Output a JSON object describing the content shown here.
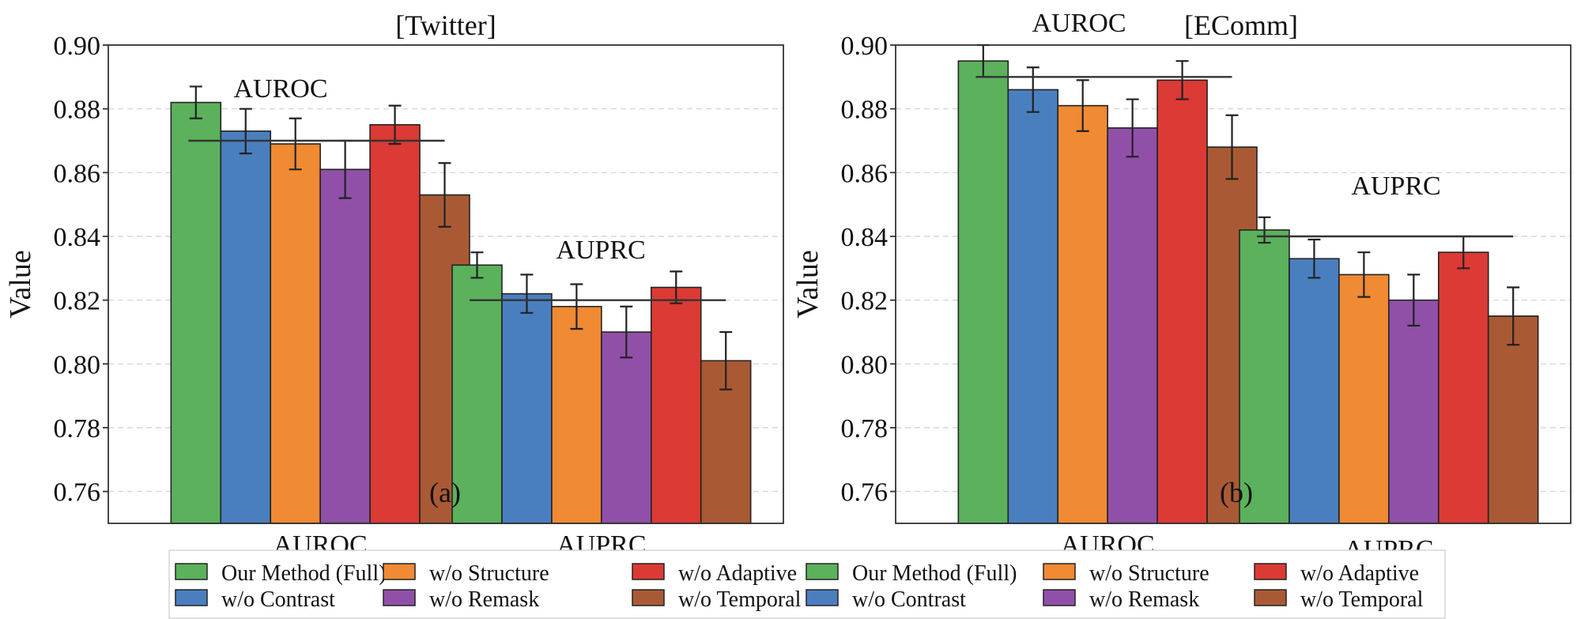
{
  "legend": {
    "entries": [
      {
        "label": "Our Method (Full)",
        "color": "#5cb15c"
      },
      {
        "label": "w/o Structure",
        "color": "#f08a33"
      },
      {
        "label": "w/o Adaptive",
        "color": "#dc3a34"
      },
      {
        "label": "Our Method (Full)",
        "color": "#5cb15c"
      },
      {
        "label": "w/o Structure",
        "color": "#f08a33"
      },
      {
        "label": "w/o Adaptive",
        "color": "#dc3a34"
      },
      {
        "label": "w/o Contrast",
        "color": "#4a7fbf"
      },
      {
        "label": "w/o Remask",
        "color": "#9050a8"
      },
      {
        "label": "w/o Temporal",
        "color": "#a95a34"
      },
      {
        "label": "w/o Contrast",
        "color": "#4a7fbf"
      },
      {
        "label": "w/o Remask",
        "color": "#9050a8"
      },
      {
        "label": "w/o Temporal",
        "color": "#a95a34"
      }
    ]
  },
  "chart_data": [
    {
      "type": "bar",
      "title": "[Twitter]",
      "panel_label": "(a)",
      "xlabel": "",
      "ylabel": "Value",
      "ylim": [
        0.75,
        0.9
      ],
      "yticks": [
        "0.76",
        "0.78",
        "0.80",
        "0.82",
        "0.84",
        "0.86",
        "0.88",
        "0.90"
      ],
      "grid": "horizontal dashed",
      "categories": [
        "AUROC",
        "AUPRC"
      ],
      "group_annotations": [
        "AUROC",
        "AUPRC"
      ],
      "reference_lines": [
        0.87,
        0.82
      ],
      "series": [
        {
          "name": "Our Method (Full)",
          "color": "#5cb15c",
          "values": [
            0.882,
            0.831
          ],
          "errors": [
            0.005,
            0.004
          ]
        },
        {
          "name": "w/o Contrast",
          "color": "#4a7fbf",
          "values": [
            0.873,
            0.822
          ],
          "errors": [
            0.007,
            0.006
          ]
        },
        {
          "name": "w/o Structure",
          "color": "#f08a33",
          "values": [
            0.869,
            0.818
          ],
          "errors": [
            0.008,
            0.007
          ]
        },
        {
          "name": "w/o Remask",
          "color": "#9050a8",
          "values": [
            0.861,
            0.81
          ],
          "errors": [
            0.009,
            0.008
          ]
        },
        {
          "name": "w/o Adaptive",
          "color": "#dc3a34",
          "values": [
            0.875,
            0.824
          ],
          "errors": [
            0.006,
            0.005
          ]
        },
        {
          "name": "w/o Temporal",
          "color": "#a95a34",
          "values": [
            0.853,
            0.801
          ],
          "errors": [
            0.01,
            0.009
          ]
        }
      ]
    },
    {
      "type": "bar",
      "title": "[EComm]",
      "panel_label": "(b)",
      "xlabel": "",
      "ylabel": "Value",
      "ylim": [
        0.75,
        0.9
      ],
      "yticks": [
        "0.76",
        "0.78",
        "0.80",
        "0.82",
        "0.84",
        "0.86",
        "0.88",
        "0.90"
      ],
      "grid": "horizontal dashed",
      "categories": [
        "AUROC",
        "AUPRC"
      ],
      "group_annotations": [
        "AUROC",
        "AUPRC"
      ],
      "reference_lines": [
        0.89,
        0.84
      ],
      "series": [
        {
          "name": "Our Method (Full)",
          "color": "#5cb15c",
          "values": [
            0.895,
            0.842
          ],
          "errors": [
            0.005,
            0.004
          ]
        },
        {
          "name": "w/o Contrast",
          "color": "#4a7fbf",
          "values": [
            0.886,
            0.833
          ],
          "errors": [
            0.007,
            0.006
          ]
        },
        {
          "name": "w/o Structure",
          "color": "#f08a33",
          "values": [
            0.881,
            0.828
          ],
          "errors": [
            0.008,
            0.007
          ]
        },
        {
          "name": "w/o Remask",
          "color": "#9050a8",
          "values": [
            0.874,
            0.82
          ],
          "errors": [
            0.009,
            0.008
          ]
        },
        {
          "name": "w/o Adaptive",
          "color": "#dc3a34",
          "values": [
            0.889,
            0.835
          ],
          "errors": [
            0.006,
            0.005
          ]
        },
        {
          "name": "w/o Temporal",
          "color": "#a95a34",
          "values": [
            0.868,
            0.815
          ],
          "errors": [
            0.01,
            0.009
          ]
        }
      ]
    }
  ]
}
